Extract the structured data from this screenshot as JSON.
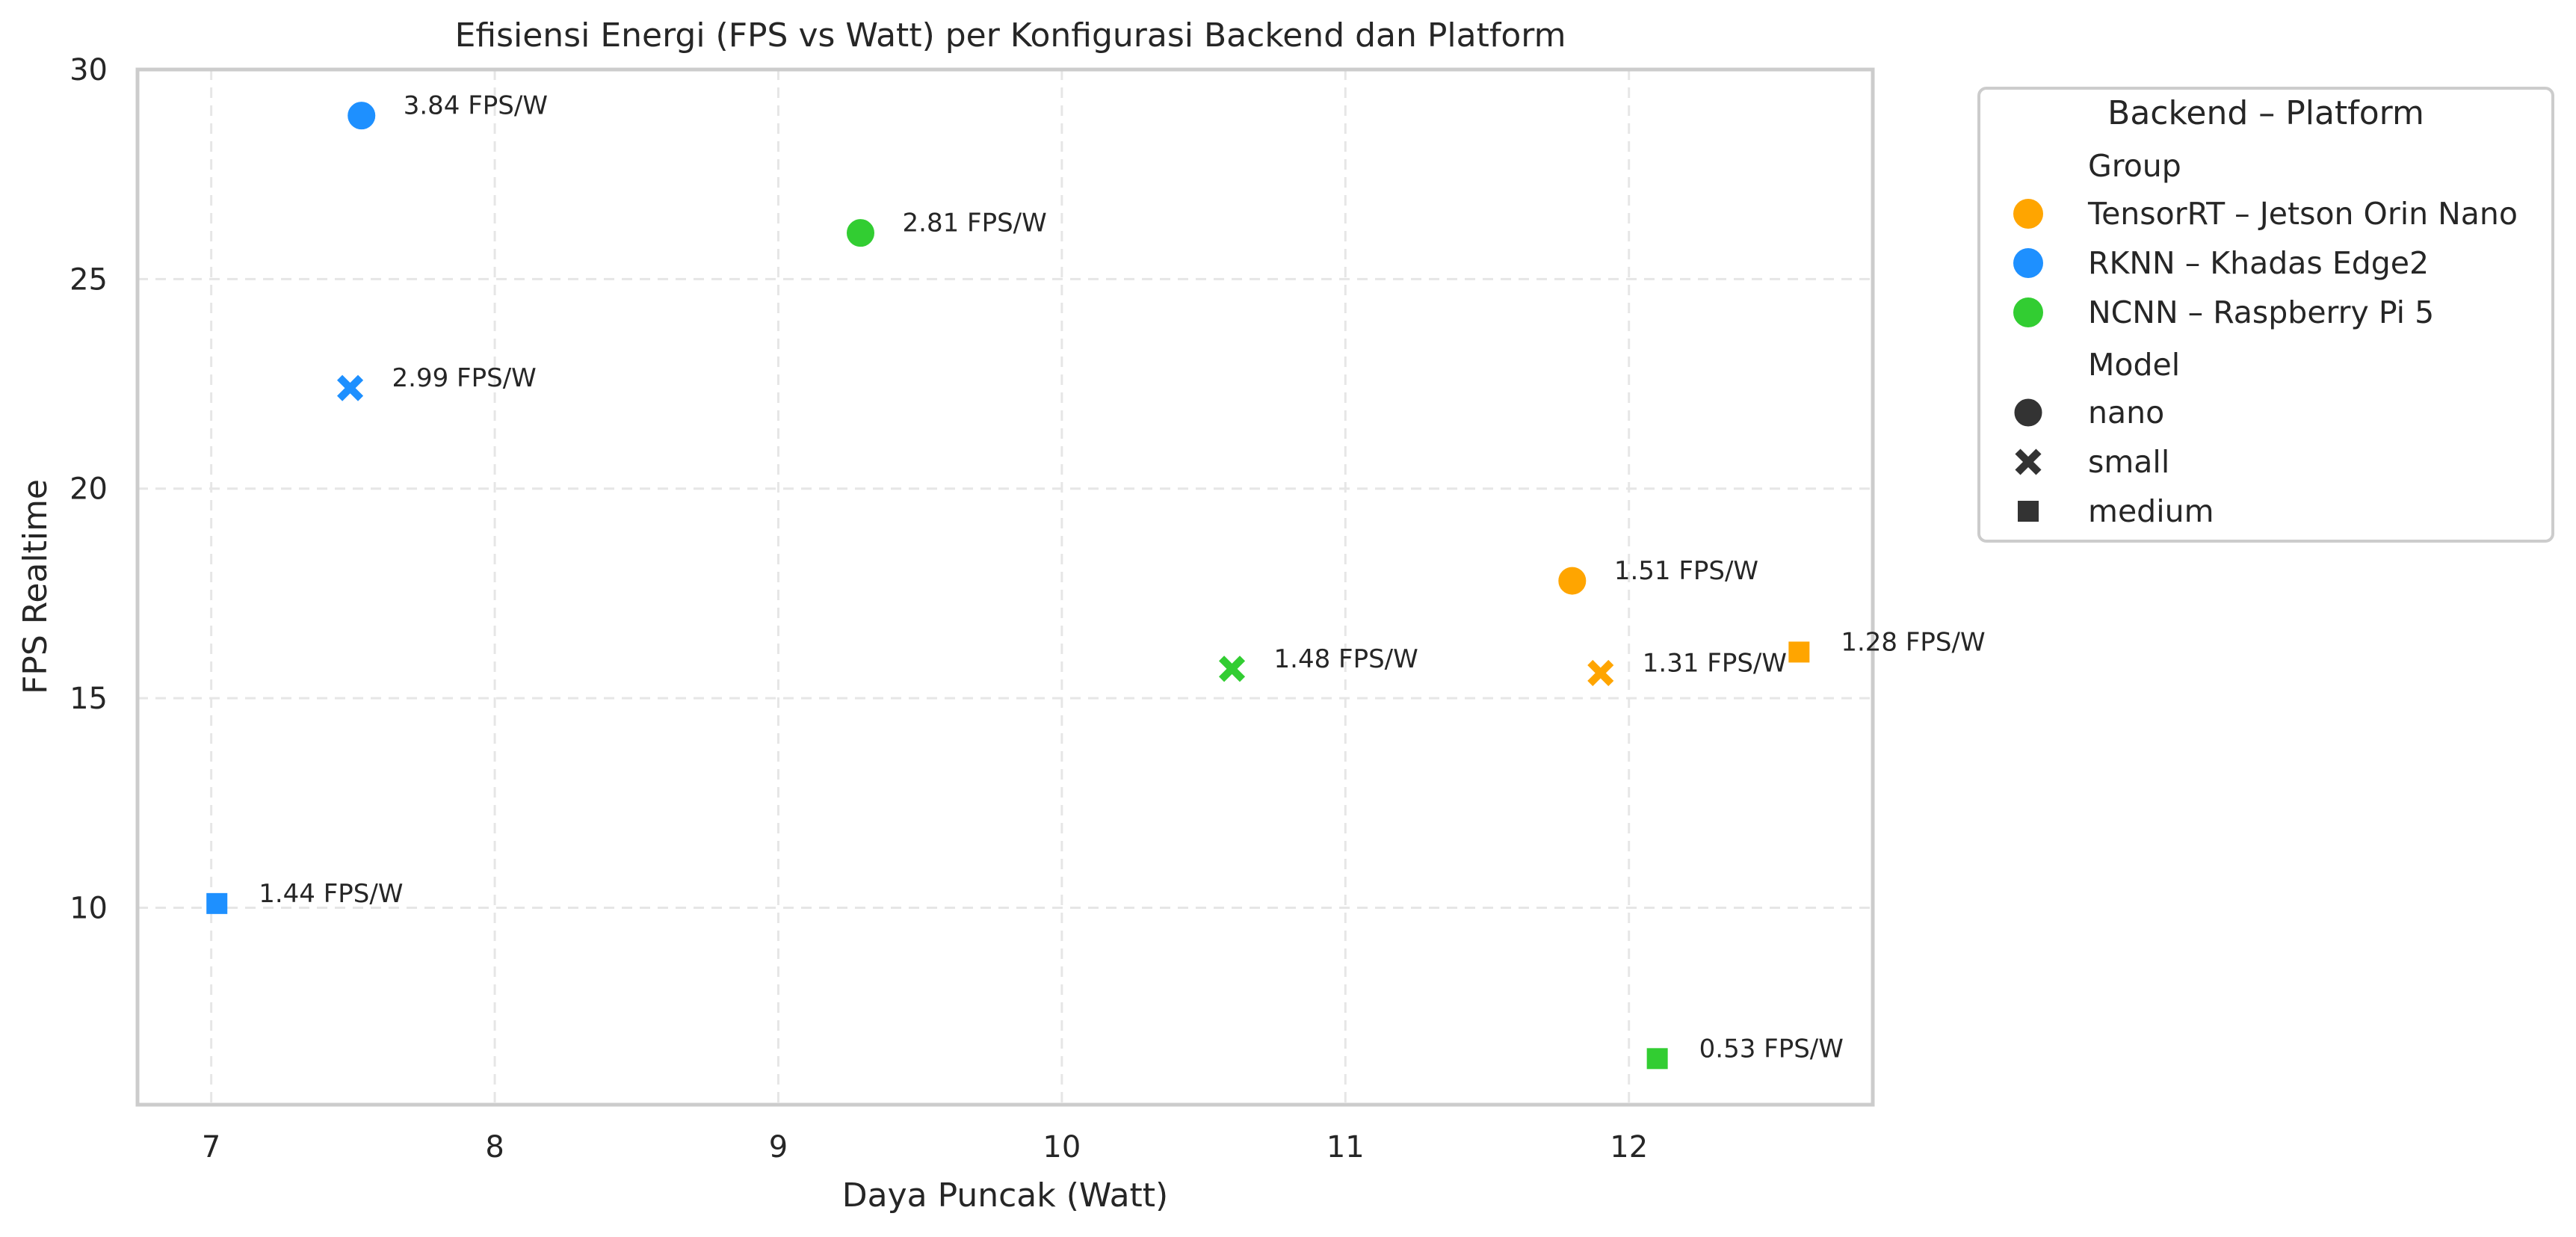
{
  "chart_data": {
    "type": "scatter",
    "title": "Efisiensi Energi (FPS vs Watt) per Konfigurasi Backend dan Platform",
    "xlabel": "Daya Puncak (Watt)",
    "ylabel": "FPS Realtime",
    "xlim": [
      6.74,
      12.86
    ],
    "ylim": [
      5.3,
      30.0
    ],
    "xticks": [
      "7",
      "8",
      "9",
      "10",
      "11",
      "12"
    ],
    "yticks": [
      "10",
      "15",
      "20",
      "25",
      "30"
    ],
    "grid": true,
    "legend_position": "outside-right",
    "legend": {
      "title": "Backend – Platform",
      "group_header": "Group",
      "model_header": "Model",
      "groups": [
        {
          "name": "TensorRT – Jetson Orin Nano",
          "color": "#FFA500"
        },
        {
          "name": "RKNN – Khadas Edge2",
          "color": "#1E90FF"
        },
        {
          "name": "NCNN – Raspberry Pi 5",
          "color": "#32CD32"
        }
      ],
      "models": [
        {
          "name": "nano",
          "marker": "circle"
        },
        {
          "name": "small",
          "marker": "x"
        },
        {
          "name": "medium",
          "marker": "square"
        }
      ]
    },
    "points": [
      {
        "group": "TensorRT – Jetson Orin Nano",
        "model": "nano",
        "x": 11.8,
        "y": 17.8,
        "label": "1.51 FPS/W"
      },
      {
        "group": "TensorRT – Jetson Orin Nano",
        "model": "small",
        "x": 11.9,
        "y": 15.6,
        "label": "1.31 FPS/W"
      },
      {
        "group": "TensorRT – Jetson Orin Nano",
        "model": "medium",
        "x": 12.6,
        "y": 16.1,
        "label": "1.28 FPS/W"
      },
      {
        "group": "RKNN – Khadas Edge2",
        "model": "nano",
        "x": 7.53,
        "y": 28.9,
        "label": "3.84 FPS/W"
      },
      {
        "group": "RKNN – Khadas Edge2",
        "model": "small",
        "x": 7.49,
        "y": 22.4,
        "label": "2.99 FPS/W"
      },
      {
        "group": "RKNN – Khadas Edge2",
        "model": "medium",
        "x": 7.02,
        "y": 10.1,
        "label": "1.44 FPS/W"
      },
      {
        "group": "NCNN – Raspberry Pi 5",
        "model": "nano",
        "x": 9.29,
        "y": 26.1,
        "label": "2.81 FPS/W"
      },
      {
        "group": "NCNN – Raspberry Pi 5",
        "model": "small",
        "x": 10.6,
        "y": 15.7,
        "label": "1.48 FPS/W"
      },
      {
        "group": "NCNN – Raspberry Pi 5",
        "model": "medium",
        "x": 12.1,
        "y": 6.4,
        "label": "0.53 FPS/W"
      }
    ]
  }
}
